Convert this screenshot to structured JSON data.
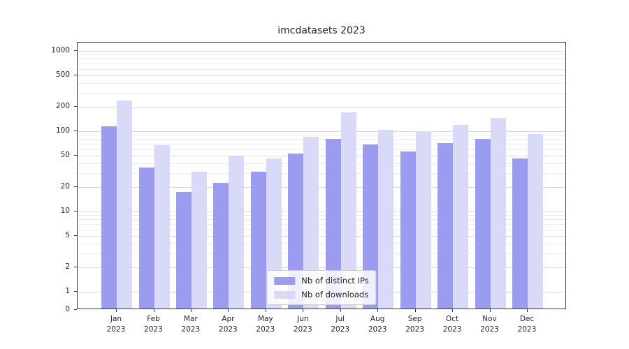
{
  "title": "imcdatasets 2023",
  "chart_data": {
    "type": "bar",
    "title": "imcdatasets 2023",
    "categories": [
      "Jan",
      "Feb",
      "Mar",
      "Apr",
      "May",
      "Jun",
      "Jul",
      "Aug",
      "Sep",
      "Oct",
      "Nov",
      "Dec"
    ],
    "year_label": "2023",
    "series": [
      {
        "name": "Nb of distinct IPs",
        "color": "#9b9bef",
        "values": [
          110,
          34,
          17,
          22,
          30,
          51,
          77,
          66,
          54,
          68,
          77,
          44
        ]
      },
      {
        "name": "Nb of downloads",
        "color": "#d9d9f8",
        "values": [
          230,
          65,
          30,
          47,
          44,
          82,
          165,
          100,
          96,
          115,
          142,
          89
        ]
      }
    ],
    "yscale": "symlog",
    "ylim": [
      0,
      1270
    ],
    "y_ticks": [
      0,
      1,
      2,
      5,
      10,
      20,
      50,
      100,
      200,
      500,
      1000
    ],
    "y_tick_labels": [
      "0",
      "1",
      "2",
      "5",
      "10",
      "20",
      "50",
      "100",
      "200",
      "500",
      "1000"
    ],
    "grid": true,
    "legend_position": "lower center"
  }
}
